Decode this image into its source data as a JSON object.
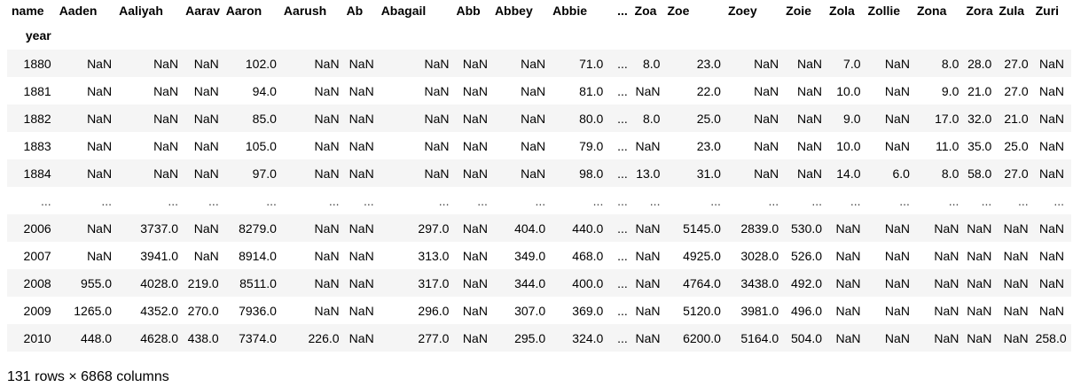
{
  "table": {
    "columns_label": "name",
    "index_label": "year",
    "columns": [
      "Aaden",
      "Aaliyah",
      "Aarav",
      "Aaron",
      "Aarush",
      "Ab",
      "Abagail",
      "Abb",
      "Abbey",
      "Abbie",
      "...",
      "Zoa",
      "Zoe",
      "Zoey",
      "Zoie",
      "Zola",
      "Zollie",
      "Zona",
      "Zora",
      "Zula",
      "Zuri"
    ],
    "rows": [
      {
        "index": "1880",
        "cells": [
          "NaN",
          "NaN",
          "NaN",
          "102.0",
          "NaN",
          "NaN",
          "NaN",
          "NaN",
          "NaN",
          "71.0",
          "...",
          "8.0",
          "23.0",
          "NaN",
          "NaN",
          "7.0",
          "NaN",
          "8.0",
          "28.0",
          "27.0",
          "NaN"
        ]
      },
      {
        "index": "1881",
        "cells": [
          "NaN",
          "NaN",
          "NaN",
          "94.0",
          "NaN",
          "NaN",
          "NaN",
          "NaN",
          "NaN",
          "81.0",
          "...",
          "NaN",
          "22.0",
          "NaN",
          "NaN",
          "10.0",
          "NaN",
          "9.0",
          "21.0",
          "27.0",
          "NaN"
        ]
      },
      {
        "index": "1882",
        "cells": [
          "NaN",
          "NaN",
          "NaN",
          "85.0",
          "NaN",
          "NaN",
          "NaN",
          "NaN",
          "NaN",
          "80.0",
          "...",
          "8.0",
          "25.0",
          "NaN",
          "NaN",
          "9.0",
          "NaN",
          "17.0",
          "32.0",
          "21.0",
          "NaN"
        ]
      },
      {
        "index": "1883",
        "cells": [
          "NaN",
          "NaN",
          "NaN",
          "105.0",
          "NaN",
          "NaN",
          "NaN",
          "NaN",
          "NaN",
          "79.0",
          "...",
          "NaN",
          "23.0",
          "NaN",
          "NaN",
          "10.0",
          "NaN",
          "11.0",
          "35.0",
          "25.0",
          "NaN"
        ]
      },
      {
        "index": "1884",
        "cells": [
          "NaN",
          "NaN",
          "NaN",
          "97.0",
          "NaN",
          "NaN",
          "NaN",
          "NaN",
          "NaN",
          "98.0",
          "...",
          "13.0",
          "31.0",
          "NaN",
          "NaN",
          "14.0",
          "6.0",
          "8.0",
          "58.0",
          "27.0",
          "NaN"
        ]
      },
      {
        "index": "...",
        "cells": [
          "...",
          "...",
          "...",
          "...",
          "...",
          "...",
          "...",
          "...",
          "...",
          "...",
          "...",
          "...",
          "...",
          "...",
          "...",
          "...",
          "...",
          "...",
          "...",
          "...",
          "..."
        ]
      },
      {
        "index": "2006",
        "cells": [
          "NaN",
          "3737.0",
          "NaN",
          "8279.0",
          "NaN",
          "NaN",
          "297.0",
          "NaN",
          "404.0",
          "440.0",
          "...",
          "NaN",
          "5145.0",
          "2839.0",
          "530.0",
          "NaN",
          "NaN",
          "NaN",
          "NaN",
          "NaN",
          "NaN"
        ]
      },
      {
        "index": "2007",
        "cells": [
          "NaN",
          "3941.0",
          "NaN",
          "8914.0",
          "NaN",
          "NaN",
          "313.0",
          "NaN",
          "349.0",
          "468.0",
          "...",
          "NaN",
          "4925.0",
          "3028.0",
          "526.0",
          "NaN",
          "NaN",
          "NaN",
          "NaN",
          "NaN",
          "NaN"
        ]
      },
      {
        "index": "2008",
        "cells": [
          "955.0",
          "4028.0",
          "219.0",
          "8511.0",
          "NaN",
          "NaN",
          "317.0",
          "NaN",
          "344.0",
          "400.0",
          "...",
          "NaN",
          "4764.0",
          "3438.0",
          "492.0",
          "NaN",
          "NaN",
          "NaN",
          "NaN",
          "NaN",
          "NaN"
        ]
      },
      {
        "index": "2009",
        "cells": [
          "1265.0",
          "4352.0",
          "270.0",
          "7936.0",
          "NaN",
          "NaN",
          "296.0",
          "NaN",
          "307.0",
          "369.0",
          "...",
          "NaN",
          "5120.0",
          "3981.0",
          "496.0",
          "NaN",
          "NaN",
          "NaN",
          "NaN",
          "NaN",
          "NaN"
        ]
      },
      {
        "index": "2010",
        "cells": [
          "448.0",
          "4628.0",
          "438.0",
          "7374.0",
          "226.0",
          "NaN",
          "277.0",
          "NaN",
          "295.0",
          "324.0",
          "...",
          "NaN",
          "6200.0",
          "5164.0",
          "504.0",
          "NaN",
          "NaN",
          "NaN",
          "NaN",
          "NaN",
          "258.0"
        ]
      }
    ]
  },
  "footer": {
    "shape_text": "131 rows × 6868 columns"
  }
}
